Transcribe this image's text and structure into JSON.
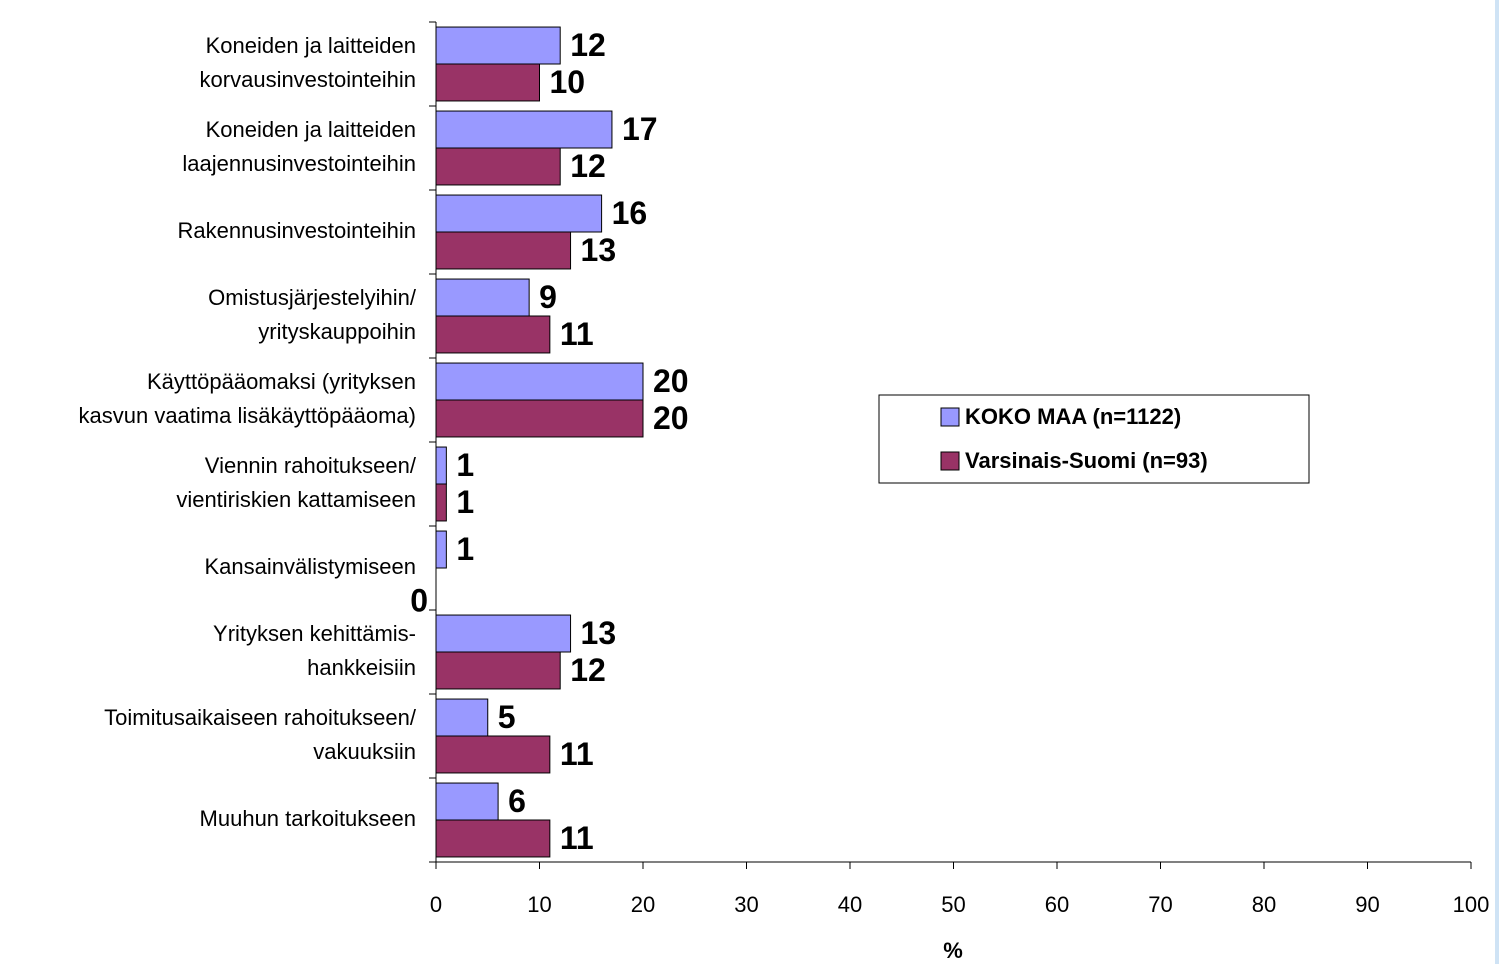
{
  "chart_data": {
    "type": "hbar",
    "categories": [
      [
        "Koneiden ja laitteiden",
        "korvausinvestointeihin"
      ],
      [
        "Koneiden ja laitteiden",
        "laajennusinvestointeihin"
      ],
      [
        "Rakennusinvestointeihin"
      ],
      [
        "Omistusjärjestelyihin/",
        "yrityskauppoihin"
      ],
      [
        "Käyttöpääomaksi (yrityksen",
        "kasvun vaatima lisäkäyttöpääoma)"
      ],
      [
        "Viennin rahoitukseen/",
        "vientiriskien kattamiseen"
      ],
      [
        "Kansainvälistymiseen"
      ],
      [
        "Yrityksen kehittämis-",
        "hankkeisiin"
      ],
      [
        "Toimitusaikaiseen rahoitukseen/",
        "vakuuksiin"
      ],
      [
        "Muuhun tarkoitukseen"
      ]
    ],
    "series": [
      {
        "name": "KOKO MAA (n=1122)",
        "color": "#9999ff",
        "values": [
          12,
          17,
          16,
          9,
          20,
          1,
          1,
          13,
          5,
          6
        ]
      },
      {
        "name": "Varsinais-Suomi (n=93)",
        "color": "#993366",
        "values": [
          10,
          12,
          13,
          11,
          20,
          1,
          0,
          12,
          11,
          11
        ]
      }
    ],
    "xlabel": "%",
    "xlim": [
      0,
      100
    ],
    "xticks": [
      0,
      10,
      20,
      30,
      40,
      50,
      60,
      70,
      80,
      90,
      100
    ],
    "legend": "right"
  }
}
